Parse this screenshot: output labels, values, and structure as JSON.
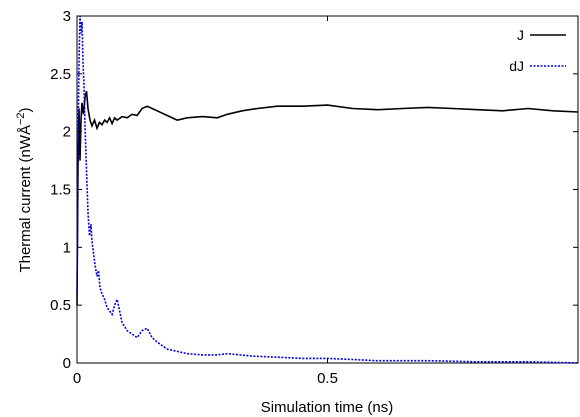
{
  "chart_data": {
    "type": "line",
    "title": "",
    "xlabel": "Simulation time (ns)",
    "ylabel": "Thermal current (nWÅ",
    "ylabel_superscript": "−2",
    "ylabel_close": ")",
    "xlim": [
      0,
      1.0
    ],
    "ylim": [
      0,
      3
    ],
    "x_ticks": [
      0,
      0.5
    ],
    "x_tick_labels": [
      "0",
      "0.5"
    ],
    "y_ticks": [
      0,
      0.5,
      1,
      1.5,
      2,
      2.5,
      3
    ],
    "y_tick_labels": [
      "0",
      "0.5",
      "1",
      "1.5",
      "2",
      "2.5",
      "3"
    ],
    "grid": false,
    "legend_position": "top-right",
    "series": [
      {
        "name": "J",
        "color": "#000000",
        "style": "solid",
        "x": [
          0,
          0.002,
          0.004,
          0.006,
          0.008,
          0.01,
          0.013,
          0.016,
          0.019,
          0.022,
          0.026,
          0.03,
          0.035,
          0.04,
          0.045,
          0.05,
          0.055,
          0.06,
          0.065,
          0.07,
          0.075,
          0.08,
          0.09,
          0.1,
          0.11,
          0.12,
          0.13,
          0.14,
          0.15,
          0.16,
          0.17,
          0.18,
          0.2,
          0.22,
          0.25,
          0.28,
          0.3,
          0.33,
          0.36,
          0.4,
          0.45,
          0.5,
          0.55,
          0.6,
          0.65,
          0.7,
          0.75,
          0.8,
          0.85,
          0.9,
          0.95,
          1.0
        ],
        "y": [
          0.5,
          1.7,
          2.2,
          1.75,
          2.1,
          2.25,
          2.15,
          2.3,
          2.35,
          2.2,
          2.1,
          2.05,
          2.1,
          2.03,
          2.08,
          2.06,
          2.1,
          2.08,
          2.12,
          2.07,
          2.12,
          2.1,
          2.13,
          2.12,
          2.15,
          2.14,
          2.2,
          2.22,
          2.2,
          2.18,
          2.16,
          2.14,
          2.1,
          2.12,
          2.13,
          2.12,
          2.15,
          2.18,
          2.2,
          2.22,
          2.22,
          2.23,
          2.2,
          2.19,
          2.2,
          2.21,
          2.2,
          2.19,
          2.18,
          2.2,
          2.18,
          2.17
        ]
      },
      {
        "name": "dJ",
        "color": "#0000dd",
        "style": "dashed",
        "x": [
          0,
          0.002,
          0.004,
          0.006,
          0.008,
          0.01,
          0.012,
          0.014,
          0.016,
          0.018,
          0.02,
          0.022,
          0.025,
          0.028,
          0.03,
          0.033,
          0.036,
          0.04,
          0.043,
          0.046,
          0.05,
          0.055,
          0.06,
          0.065,
          0.07,
          0.075,
          0.08,
          0.085,
          0.09,
          0.1,
          0.11,
          0.12,
          0.13,
          0.14,
          0.15,
          0.16,
          0.18,
          0.2,
          0.22,
          0.25,
          0.28,
          0.3,
          0.35,
          0.4,
          0.45,
          0.5,
          0.55,
          0.6,
          0.65,
          0.7,
          0.8,
          0.9,
          1.0
        ],
        "y": [
          0.6,
          1.9,
          2.6,
          3.0,
          2.85,
          2.95,
          2.6,
          2.4,
          2.05,
          1.8,
          1.55,
          1.3,
          1.1,
          1.2,
          1.05,
          0.95,
          0.85,
          0.75,
          0.8,
          0.65,
          0.6,
          0.55,
          0.48,
          0.45,
          0.42,
          0.5,
          0.55,
          0.45,
          0.35,
          0.28,
          0.25,
          0.22,
          0.28,
          0.3,
          0.22,
          0.18,
          0.12,
          0.1,
          0.08,
          0.07,
          0.07,
          0.08,
          0.06,
          0.05,
          0.04,
          0.04,
          0.03,
          0.02,
          0.02,
          0.02,
          0.01,
          0.01,
          0.0
        ]
      }
    ]
  }
}
